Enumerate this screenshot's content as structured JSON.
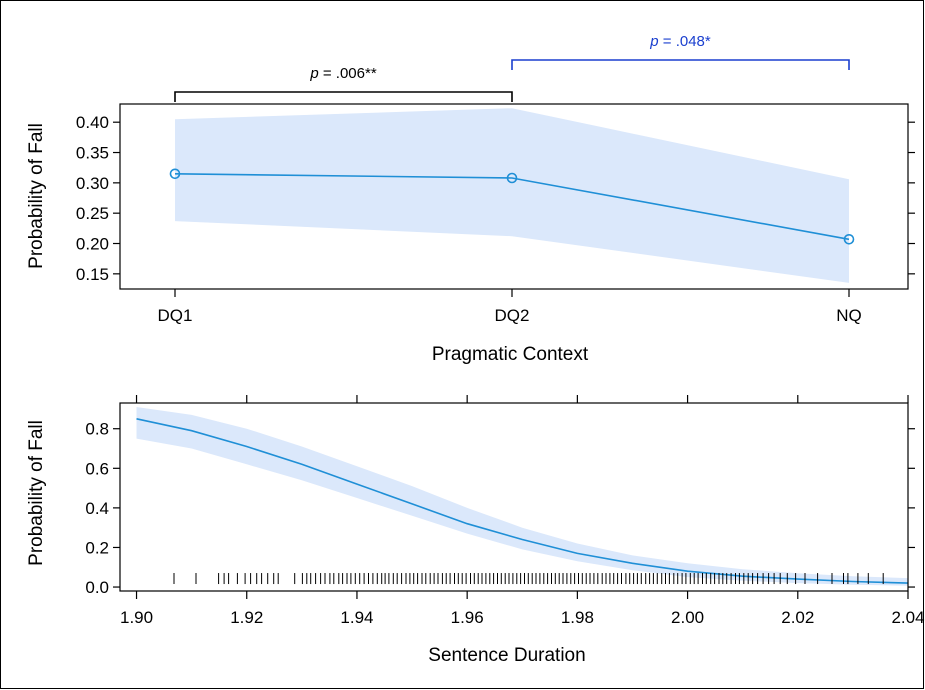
{
  "colors": {
    "line": "#1f8fd6",
    "band": "#dbe8fb",
    "bracket_black": "#000000",
    "bracket_blue": "#1a3fcf"
  },
  "chart_data": [
    {
      "type": "line",
      "title": "",
      "xlabel": "Pragmatic Context",
      "ylabel": "Probability of Fall",
      "categories": [
        "DQ1",
        "DQ2",
        "NQ"
      ],
      "series": [
        {
          "values": [
            0.315,
            0.308,
            0.207
          ],
          "lower": [
            0.237,
            0.212,
            0.135
          ],
          "upper": [
            0.405,
            0.423,
            0.306
          ]
        }
      ],
      "ylim": [
        0.125,
        0.43
      ],
      "yticks": [
        0.15,
        0.2,
        0.25,
        0.3,
        0.35,
        0.4
      ],
      "ytick_labels": [
        "0.15",
        "0.20",
        "0.25",
        "0.30",
        "0.35",
        "0.40"
      ],
      "grid": false,
      "annotations": [
        {
          "from": "DQ1",
          "to": "DQ2",
          "text_italic": "p",
          "text": " = .006**",
          "color": "black"
        },
        {
          "from": "DQ2",
          "to": "NQ",
          "text_italic": "p",
          "text": " = .048*",
          "color": "blue"
        }
      ]
    },
    {
      "type": "line",
      "title": "",
      "xlabel": "Sentence Duration",
      "ylabel": "Probability of Fall",
      "x": [
        1.9,
        1.91,
        1.92,
        1.93,
        1.94,
        1.95,
        1.96,
        1.97,
        1.98,
        1.99,
        2.0,
        2.01,
        2.02,
        2.03,
        2.04
      ],
      "series": [
        {
          "values": [
            0.85,
            0.79,
            0.71,
            0.62,
            0.52,
            0.42,
            0.32,
            0.24,
            0.17,
            0.12,
            0.08,
            0.055,
            0.04,
            0.028,
            0.02
          ],
          "lower": [
            0.75,
            0.7,
            0.62,
            0.54,
            0.45,
            0.36,
            0.27,
            0.19,
            0.13,
            0.085,
            0.05,
            0.032,
            0.02,
            0.012,
            0.007
          ],
          "upper": [
            0.91,
            0.87,
            0.8,
            0.71,
            0.61,
            0.51,
            0.4,
            0.3,
            0.22,
            0.16,
            0.12,
            0.09,
            0.07,
            0.055,
            0.045
          ]
        }
      ],
      "xlim": [
        1.897,
        2.04
      ],
      "ylim": [
        -0.02,
        0.93
      ],
      "xticks": [
        1.9,
        1.92,
        1.94,
        1.96,
        1.98,
        2.0,
        2.02,
        2.04
      ],
      "xtick_labels": [
        "1.90",
        "1.92",
        "1.94",
        "1.96",
        "1.98",
        "2.00",
        "2.02",
        "2.04"
      ],
      "yticks": [
        0.0,
        0.2,
        0.4,
        0.6,
        0.8
      ],
      "ytick_labels": [
        "0.0",
        "0.2",
        "0.4",
        "0.6",
        "0.8"
      ],
      "grid": false,
      "rug_x": [
        1.9068,
        1.9108,
        1.9149,
        1.9159,
        1.9167,
        1.9183,
        1.9197,
        1.9207,
        1.9218,
        1.9227,
        1.9238,
        1.9249,
        1.9257,
        1.9287,
        1.9301,
        1.9309,
        1.9316,
        1.9325,
        1.9334,
        1.9342,
        1.9351,
        1.9358,
        1.9367,
        1.9374,
        1.9382,
        1.9389,
        1.9397,
        1.9405,
        1.9413,
        1.9421,
        1.9429,
        1.9437,
        1.9445,
        1.9451,
        1.9458,
        1.9466,
        1.9473,
        1.9481,
        1.9489,
        1.9496,
        1.9503,
        1.951,
        1.9518,
        1.9525,
        1.9533,
        1.954,
        1.9547,
        1.9555,
        1.9562,
        1.9569,
        1.9577,
        1.9584,
        1.9591,
        1.9598,
        1.9606,
        1.9613,
        1.962,
        1.9627,
        1.9634,
        1.9641,
        1.9648,
        1.9655,
        1.9662,
        1.9669,
        1.9676,
        1.9683,
        1.969,
        1.9697,
        1.9704,
        1.9711,
        1.9718,
        1.9725,
        1.9732,
        1.9739,
        1.9746,
        1.9753,
        1.976,
        1.9767,
        1.9774,
        1.9781,
        1.9788,
        1.9795,
        1.9802,
        1.9809,
        1.9816,
        1.9823,
        1.983,
        1.9837,
        1.9845,
        1.9852,
        1.9859,
        1.9866,
        1.9873,
        1.988,
        1.9888,
        1.9895,
        1.9902,
        1.9909,
        1.9916,
        1.9924,
        1.9931,
        1.9938,
        1.9945,
        1.9953,
        1.996,
        1.9967,
        1.9975,
        1.9982,
        1.999,
        1.9997,
        2.0005,
        2.0012,
        2.0019,
        2.0027,
        2.0034,
        2.0042,
        2.0049,
        2.0057,
        2.0064,
        2.0071,
        2.0079,
        2.0087,
        2.0094,
        2.0102,
        2.011,
        2.0118,
        2.0127,
        2.0137,
        2.0147,
        2.0157,
        2.0168,
        2.0181,
        2.0196,
        2.0213,
        2.0236,
        2.0262,
        2.0283,
        2.0291,
        2.0309,
        2.0328,
        2.0355
      ]
    }
  ]
}
